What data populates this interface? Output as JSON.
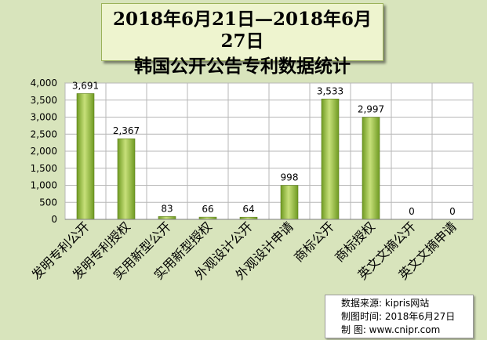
{
  "title": {
    "line1": "2018年6月21日—2018年6月27日",
    "line2": "韩国公开公告专利数据统计"
  },
  "colors": {
    "background": "#d8e4bc",
    "plot_background": "#ffffff",
    "bar": "#8db83a",
    "bar_highlight": "#c7e07a",
    "grid": "#b7b7b7"
  },
  "source": {
    "line1": "数据来源: kipris网站",
    "line2": "制图时间: 2018年6月27日",
    "line3": "制      图: www.cnipr.com"
  },
  "chart_data": {
    "type": "bar",
    "categories": [
      "发明专利公开",
      "发明专利授权",
      "实用新型公开",
      "实用新型授权",
      "外观设计公开",
      "外观设计申请",
      "商标公开",
      "商标授权",
      "英文文摘公开",
      "英文文摘申请"
    ],
    "values": [
      3691,
      2367,
      83,
      66,
      64,
      998,
      3533,
      2997,
      0,
      0
    ],
    "data_labels": [
      "3,691",
      "2,367",
      "83",
      "66",
      "64",
      "998",
      "3,533",
      "2,997",
      "0",
      "0"
    ],
    "ylim": [
      0,
      4000
    ],
    "yticks": [
      0,
      500,
      1000,
      1500,
      2000,
      2500,
      3000,
      3500,
      4000
    ],
    "ytick_labels": [
      "0",
      "500",
      "1,000",
      "1,500",
      "2,000",
      "2,500",
      "3,000",
      "3,500",
      "4,000"
    ],
    "grid": true,
    "legend": "none"
  }
}
